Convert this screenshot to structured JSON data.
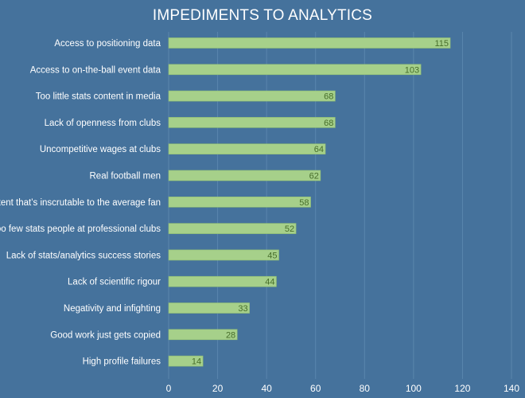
{
  "chart_data": {
    "type": "bar",
    "orientation": "horizontal",
    "title": "IMPEDIMENTS TO ANALYTICS",
    "xlabel": "",
    "ylabel": "",
    "xlim": [
      0,
      140
    ],
    "x_ticks": [
      0,
      20,
      40,
      60,
      80,
      100,
      120,
      140
    ],
    "grid": true,
    "categories": [
      "Access to positioning data",
      "Access to on-the-ball event data",
      "Too little stats content in media",
      "Lack of openness from clubs",
      "Uncompetitive wages at clubs",
      "Real football men",
      "Content that’s inscrutable to the average fan",
      "Too few stats people at professional clubs",
      "Lack of stats/analytics success stories",
      "Lack of scientific rigour",
      "Negativity and infighting",
      "Good work just gets copied",
      "High profile failures"
    ],
    "values": [
      115,
      103,
      68,
      68,
      64,
      62,
      58,
      52,
      45,
      44,
      33,
      28,
      14
    ],
    "colors": {
      "background": "#45729c",
      "bar": "#a6d08a",
      "bar_stroke": "#8fbd72",
      "grid": "#5a86ad",
      "text": "#ffffff",
      "data_label": "#466d2a"
    }
  }
}
